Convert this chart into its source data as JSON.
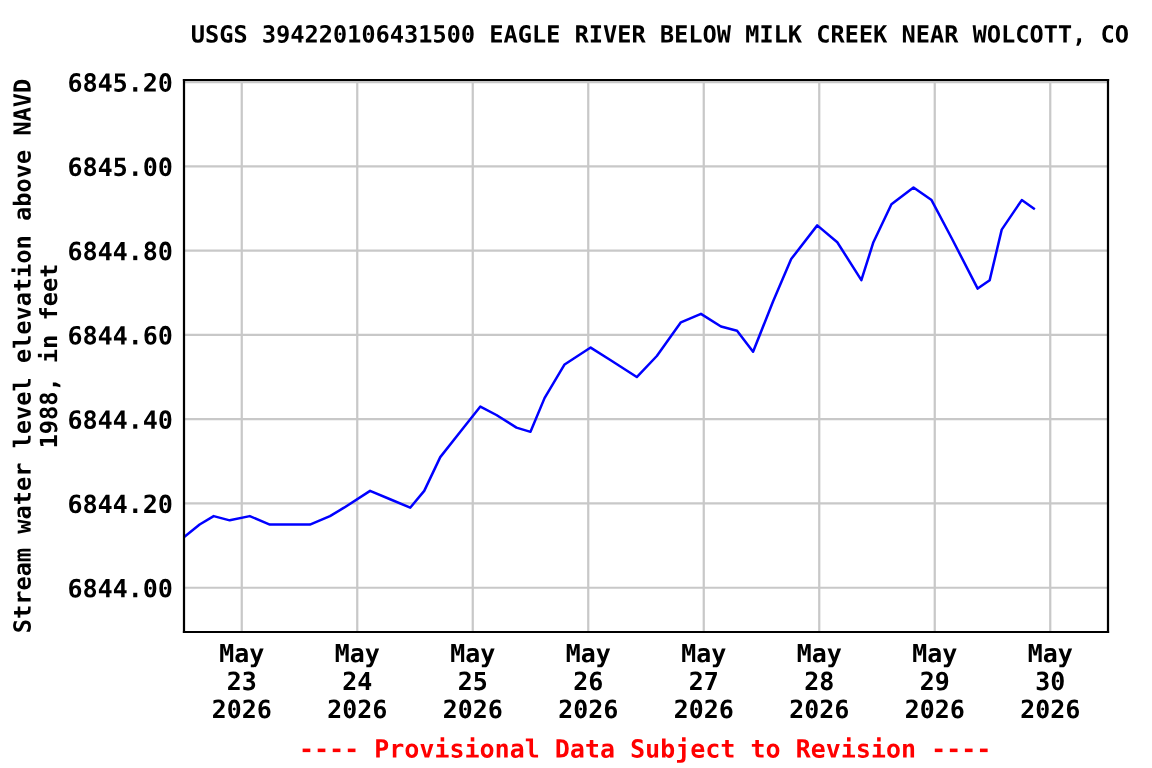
{
  "chart_data": {
    "type": "line",
    "title": "USGS 394220106431500 EAGLE RIVER BELOW MILK CREEK NEAR WOLCOTT, CO",
    "ylabel": "Stream water level elevation above NAVD\n1988, in feet",
    "annotations": [
      "---- Provisional Data Subject to Revision ----"
    ],
    "x": [
      "2026-05-22T12:00",
      "2026-05-22T15:15",
      "2026-05-22T18:10",
      "2026-05-22T21:30",
      "2026-05-23T01:40",
      "2026-05-23T05:50",
      "2026-05-23T10:00",
      "2026-05-23T14:10",
      "2026-05-23T18:20",
      "2026-05-23T21:15",
      "2026-05-24T02:40",
      "2026-05-24T06:50",
      "2026-05-24T11:00",
      "2026-05-24T13:55",
      "2026-05-24T17:15",
      "2026-05-24T21:25",
      "2026-05-25T01:35",
      "2026-05-25T04:55",
      "2026-05-25T09:05",
      "2026-05-25T12:00",
      "2026-05-25T14:55",
      "2026-05-25T19:05",
      "2026-05-26T00:30",
      "2026-05-26T04:40",
      "2026-05-26T10:05",
      "2026-05-26T14:15",
      "2026-05-26T19:15",
      "2026-05-26T23:25",
      "2026-05-27T03:35",
      "2026-05-27T06:55",
      "2026-05-27T10:15",
      "2026-05-27T14:25",
      "2026-05-27T18:10",
      "2026-05-27T23:35",
      "2026-05-28T03:45",
      "2026-05-28T08:45",
      "2026-05-28T11:15",
      "2026-05-28T15:00",
      "2026-05-28T19:35",
      "2026-05-28T23:20",
      "2026-05-29T03:30",
      "2026-05-29T08:55",
      "2026-05-29T11:25",
      "2026-05-29T13:55",
      "2026-05-29T18:05",
      "2026-05-29T20:35"
    ],
    "series": [
      {
        "color": "#0000ff",
        "values": [
          6844.12,
          6844.15,
          6844.17,
          6844.16,
          6844.17,
          6844.15,
          6844.15,
          6844.15,
          6844.17,
          6844.19,
          6844.23,
          6844.21,
          6844.19,
          6844.23,
          6844.31,
          6844.37,
          6844.43,
          6844.41,
          6844.38,
          6844.37,
          6844.45,
          6844.53,
          6844.57,
          6844.54,
          6844.5,
          6844.55,
          6844.63,
          6844.65,
          6844.62,
          6844.61,
          6844.56,
          6844.68,
          6844.78,
          6844.86,
          6844.82,
          6844.73,
          6844.82,
          6844.91,
          6844.95,
          6844.92,
          6844.83,
          6844.71,
          6844.73,
          6844.85,
          6844.92,
          6844.9
        ]
      }
    ],
    "xlim": [
      "2026-05-22T12:00",
      "2026-05-30T12:00"
    ],
    "xticks": [
      {
        "value": "2026-05-23",
        "label": "May\n23\n2026"
      },
      {
        "value": "2026-05-24",
        "label": "May\n24\n2026"
      },
      {
        "value": "2026-05-25",
        "label": "May\n25\n2026"
      },
      {
        "value": "2026-05-26",
        "label": "May\n26\n2026"
      },
      {
        "value": "2026-05-27",
        "label": "May\n27\n2026"
      },
      {
        "value": "2026-05-28",
        "label": "May\n28\n2026"
      },
      {
        "value": "2026-05-29",
        "label": "May\n29\n2026"
      },
      {
        "value": "2026-05-30",
        "label": "May\n30\n2026"
      }
    ],
    "ylim": [
      6843.895,
      6845.205
    ],
    "yticks": [
      {
        "value": 6844.0,
        "label": "6844.00"
      },
      {
        "value": 6844.2,
        "label": "6844.20"
      },
      {
        "value": 6844.4,
        "label": "6844.40"
      },
      {
        "value": 6844.6,
        "label": "6844.60"
      },
      {
        "value": 6844.8,
        "label": "6844.80"
      },
      {
        "value": 6845.0,
        "label": "6845.00"
      },
      {
        "value": 6845.2,
        "label": "6845.20"
      }
    ],
    "grid": true,
    "legend": false,
    "marker": "none",
    "line_style": "solid"
  }
}
